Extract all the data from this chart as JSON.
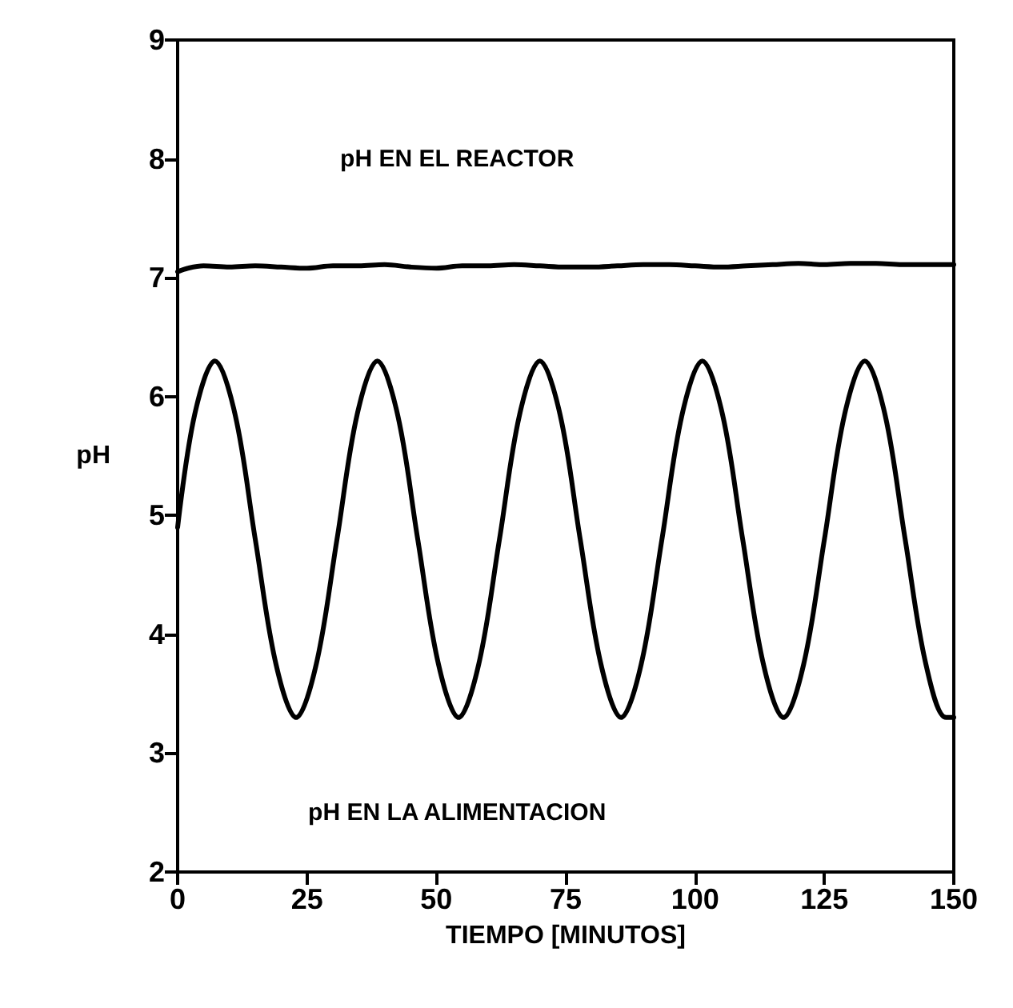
{
  "chart_data": {
    "type": "line",
    "xlabel": "TIEMPO [MINUTOS]",
    "ylabel": "pH",
    "xlim": [
      0,
      150
    ],
    "xticks": [
      0,
      25,
      50,
      75,
      100,
      125,
      150
    ],
    "ylim": [
      2,
      9
    ],
    "yticks": [
      2,
      3,
      4,
      5,
      6,
      7,
      8,
      9
    ],
    "grid": false,
    "marker": "none",
    "line_style": "solid",
    "series": [
      {
        "color": "#000000",
        "x": [
          0,
          2,
          5,
          10,
          15,
          20,
          25,
          30,
          35,
          40,
          45,
          50,
          55,
          60,
          65,
          70,
          75,
          80,
          85,
          90,
          95,
          100,
          105,
          110,
          115,
          120,
          125,
          130,
          135,
          140,
          145,
          150
        ],
        "values": [
          7.05,
          7.08,
          7.1,
          7.09,
          7.1,
          7.09,
          7.08,
          7.1,
          7.1,
          7.11,
          7.09,
          7.08,
          7.1,
          7.1,
          7.11,
          7.1,
          7.09,
          7.09,
          7.1,
          7.11,
          7.11,
          7.1,
          7.09,
          7.1,
          7.11,
          7.12,
          7.11,
          7.12,
          7.12,
          7.11,
          7.11,
          7.11
        ]
      },
      {
        "color": "#000000",
        "x": [
          0,
          3.3,
          7.2,
          11.1,
          15,
          19,
          22.9,
          26.8,
          30.8,
          34.7,
          38.6,
          42.5,
          46.4,
          50.4,
          54.3,
          58.2,
          62.2,
          66.1,
          70,
          73.9,
          77.8,
          81.8,
          85.7,
          89.6,
          93.6,
          97.5,
          101.4,
          105.3,
          109.2,
          113.2,
          117.1,
          121,
          125,
          128.9,
          132.8,
          136.7,
          140.6,
          144.6,
          148.5,
          150
        ],
        "values": [
          4.9,
          5.85,
          6.3,
          5.85,
          4.8,
          3.75,
          3.3,
          3.75,
          4.8,
          5.85,
          6.3,
          5.85,
          4.8,
          3.75,
          3.3,
          3.75,
          4.8,
          5.85,
          6.3,
          5.85,
          4.8,
          3.75,
          3.3,
          3.75,
          4.8,
          5.85,
          6.3,
          5.85,
          4.8,
          3.75,
          3.3,
          3.75,
          4.8,
          5.85,
          6.3,
          5.85,
          4.8,
          3.75,
          3.3,
          3.3
        ]
      }
    ],
    "annotations": [
      "pH EN EL REACTOR",
      "pH EN LA ALIMENTACION"
    ]
  }
}
